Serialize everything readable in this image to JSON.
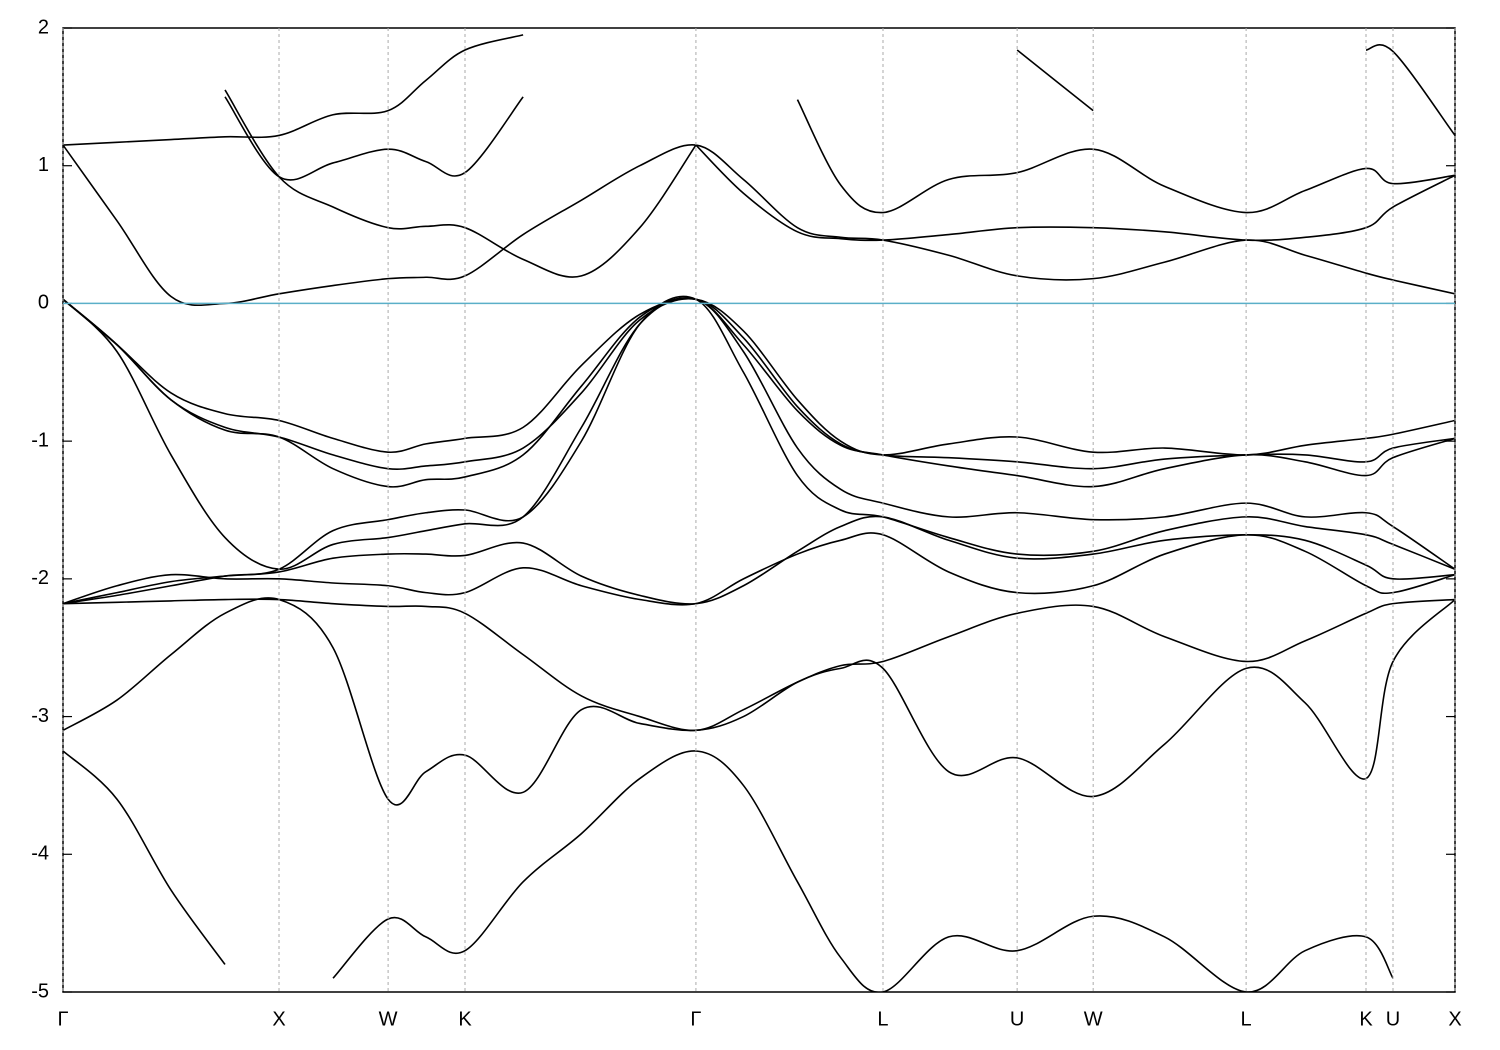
{
  "chart_data": {
    "type": "line",
    "x": [
      0,
      0.25,
      0.5,
      0.75,
      1.0,
      1.25,
      1.505,
      1.68,
      1.861,
      2.13,
      2.4,
      2.67,
      2.93,
      3.15,
      3.4,
      3.6,
      3.796,
      4.1,
      4.417,
      4.769,
      5.1,
      5.477,
      5.75,
      6.032,
      6.157,
      6.444
    ],
    "xlim": [
      0,
      6.444
    ],
    "xticks": [
      {
        "value": 0,
        "label": "Γ"
      },
      {
        "value": 1.0,
        "label": "X"
      },
      {
        "value": 1.505,
        "label": "W"
      },
      {
        "value": 1.861,
        "label": "K"
      },
      {
        "value": 2.93,
        "label": "Γ"
      },
      {
        "value": 3.796,
        "label": "L"
      },
      {
        "value": 4.417,
        "label": "U"
      },
      {
        "value": 4.769,
        "label": "W"
      },
      {
        "value": 5.477,
        "label": "L"
      },
      {
        "value": 6.032,
        "label": "K"
      },
      {
        "value": 6.157,
        "label": "U"
      },
      {
        "value": 6.444,
        "label": "X"
      }
    ],
    "ylim": [
      -5,
      2
    ],
    "yticks": [
      -5,
      -4,
      -3,
      -2,
      -1,
      0,
      1,
      2
    ],
    "grid": true,
    "line_color": "#000000",
    "reference_line": {
      "value": 0,
      "color": "#5aafc8"
    },
    "series": [
      {
        "values": [
          -3.25,
          -3.6,
          -4.26,
          -4.8,
          null,
          -4.9,
          -4.47,
          -4.6,
          -4.7,
          -4.2,
          -3.85,
          -3.45,
          -3.25,
          -3.5,
          -4.2,
          -4.75,
          -5.0,
          -4.6,
          -4.7,
          -4.45,
          -4.6,
          -5.0,
          -4.7,
          -4.6,
          -4.9,
          null
        ]
      },
      {
        "values": [
          -3.1,
          -2.88,
          -2.55,
          -2.25,
          -2.15,
          -2.5,
          -3.6,
          -3.4,
          -3.28,
          -3.55,
          -2.95,
          -3.05,
          -3.1,
          -3.0,
          -2.75,
          -2.65,
          -2.65,
          -3.4,
          -3.3,
          -3.58,
          -3.2,
          -2.65,
          -2.9,
          -3.45,
          -2.6,
          -2.15
        ]
      },
      {
        "values": [
          -2.18,
          -2.17,
          -2.16,
          -2.15,
          -2.15,
          -2.18,
          -2.2,
          -2.2,
          -2.25,
          -2.55,
          -2.85,
          -3.0,
          -3.1,
          -2.95,
          -2.75,
          -2.63,
          -2.6,
          -2.42,
          -2.25,
          -2.2,
          -2.42,
          -2.6,
          -2.45,
          -2.25,
          -2.18,
          -2.15
        ]
      },
      {
        "values": [
          -2.18,
          -2.05,
          -1.97,
          -2.0,
          -2.0,
          -2.03,
          -2.05,
          -2.1,
          -2.1,
          -1.92,
          -2.05,
          -2.15,
          -2.18,
          -2.0,
          -1.82,
          -1.72,
          -1.68,
          -1.95,
          -2.1,
          -2.05,
          -1.82,
          -1.68,
          -1.8,
          -2.05,
          -2.1,
          -1.97
        ]
      },
      {
        "values": [
          0.03,
          -0.35,
          -1.1,
          -1.7,
          -1.93,
          -1.75,
          -1.7,
          -1.65,
          -1.6,
          -1.55,
          -0.9,
          -0.15,
          0.03,
          -0.35,
          -1.05,
          -1.35,
          -1.45,
          -1.55,
          -1.52,
          -1.57,
          -1.55,
          -1.45,
          -1.55,
          -1.52,
          -1.62,
          -1.93
        ]
      },
      {
        "values": [
          0.03,
          -0.3,
          -0.65,
          -0.8,
          -0.85,
          -0.98,
          -1.08,
          -1.02,
          -0.98,
          -0.9,
          -0.45,
          -0.08,
          0.03,
          -0.2,
          -0.7,
          -1.0,
          -1.1,
          -1.02,
          -0.97,
          -1.08,
          -1.05,
          -1.1,
          -1.03,
          -0.98,
          -0.95,
          -0.85
        ]
      },
      {
        "values": [
          0.03,
          -0.3,
          -0.7,
          -0.9,
          -0.97,
          -1.1,
          -1.2,
          -1.18,
          -1.15,
          -1.05,
          -0.65,
          -0.12,
          0.03,
          -0.25,
          -0.75,
          -1.02,
          -1.1,
          -1.12,
          -1.15,
          -1.2,
          -1.13,
          -1.1,
          -1.1,
          -1.15,
          -1.05,
          -0.98
        ]
      },
      {
        "values": [
          0.03,
          -0.3,
          -0.7,
          -0.92,
          -0.97,
          -1.2,
          -1.33,
          -1.28,
          -1.26,
          -1.1,
          -0.6,
          -0.1,
          0.03,
          -0.3,
          -0.78,
          -1.03,
          -1.1,
          -1.18,
          -1.25,
          -1.33,
          -1.2,
          -1.1,
          -1.15,
          -1.25,
          -1.12,
          -0.98
        ]
      },
      {
        "values": [
          -2.18,
          -2.12,
          -2.05,
          -1.98,
          -1.93,
          -1.65,
          -1.57,
          -1.52,
          -1.5,
          -1.55,
          -1.0,
          -0.15,
          0.03,
          -0.5,
          -1.25,
          -1.5,
          -1.55,
          -1.7,
          -1.82,
          -1.8,
          -1.65,
          -1.55,
          -1.62,
          -1.68,
          -1.75,
          -1.93
        ]
      },
      {
        "values": [
          -2.18,
          -2.1,
          -2.02,
          -1.98,
          -1.95,
          -1.85,
          -1.82,
          -1.82,
          -1.83,
          -1.74,
          -1.98,
          -2.12,
          -2.18,
          -2.05,
          -1.8,
          -1.62,
          -1.55,
          -1.72,
          -1.85,
          -1.82,
          -1.72,
          -1.68,
          -1.72,
          -1.9,
          -2.0,
          -1.97
        ]
      },
      {
        "values": [
          1.15,
          0.6,
          0.05,
          0.0,
          0.07,
          0.13,
          0.18,
          0.19,
          0.2,
          0.5,
          0.75,
          1.0,
          1.15,
          0.9,
          0.55,
          0.48,
          0.46,
          0.35,
          0.2,
          0.18,
          0.3,
          0.46,
          0.35,
          0.22,
          0.17,
          0.07
        ]
      },
      {
        "values": [
          1.15,
          1.17,
          1.19,
          1.21,
          1.22,
          1.37,
          1.4,
          1.62,
          1.84,
          1.95,
          null,
          null,
          null,
          null,
          1.48,
          0.86,
          0.66,
          0.9,
          0.95,
          1.12,
          0.85,
          0.66,
          0.82,
          0.98,
          0.87,
          0.93
        ]
      },
      {
        "values": [
          null,
          null,
          null,
          1.5,
          0.92,
          1.02,
          1.12,
          1.03,
          0.95,
          1.5,
          null,
          null,
          1.15,
          0.8,
          0.52,
          0.47,
          0.46,
          0.5,
          0.55,
          0.55,
          0.52,
          0.46,
          0.48,
          0.55,
          0.7,
          0.93
        ]
      },
      {
        "values": [
          null,
          null,
          null,
          1.55,
          0.92,
          0.7,
          0.55,
          0.56,
          0.55,
          0.32,
          0.2,
          0.55,
          1.15,
          null,
          null,
          null,
          null,
          null,
          1.84,
          1.4,
          null,
          null,
          null,
          1.84,
          1.83,
          1.22
        ]
      }
    ]
  }
}
